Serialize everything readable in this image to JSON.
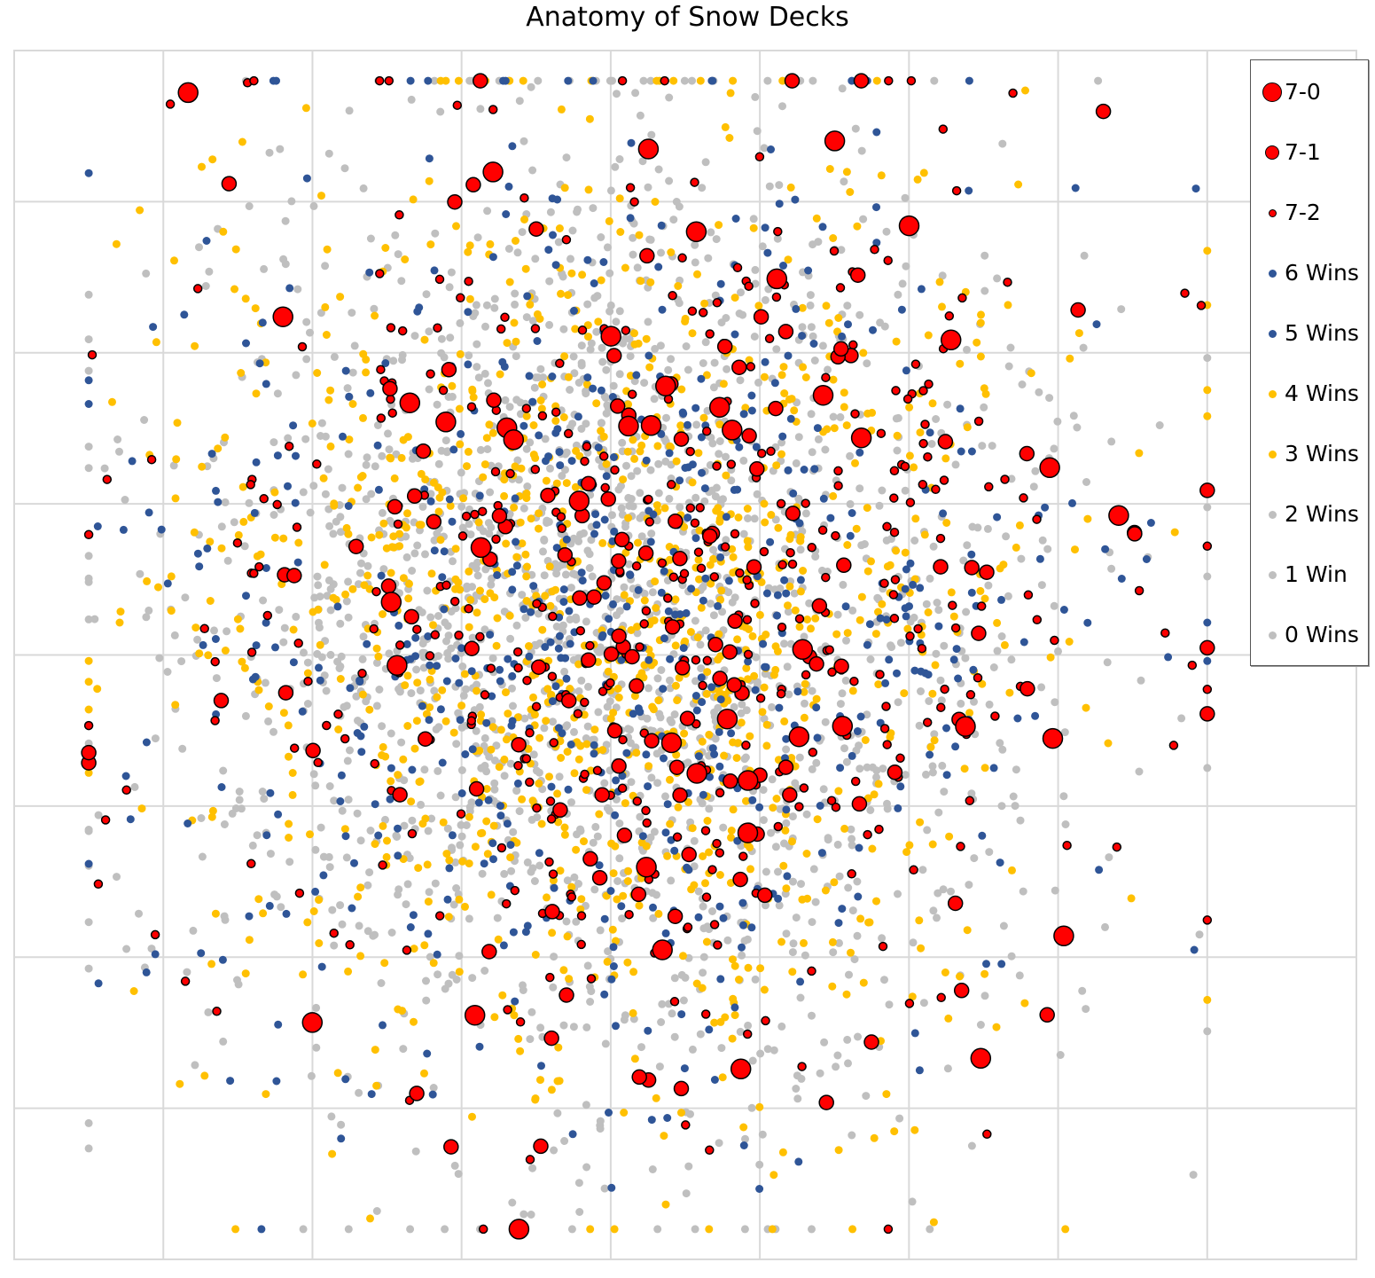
{
  "chart_data": {
    "type": "scatter",
    "title": "Anatomy of Snow Decks",
    "xlabel": "",
    "ylabel": "",
    "xlim": [
      0,
      9
    ],
    "ylim": [
      0,
      8
    ],
    "grid": true,
    "legend_placement": "top-right",
    "note": "Scatter of individual decks; thousands of points, approximate distribution reproduced procedurally.",
    "series": [
      {
        "name": "7-0",
        "color": "#FF0000",
        "outline": "#000000",
        "marker": "large",
        "approx_count": 45
      },
      {
        "name": "7-1",
        "color": "#FF0000",
        "outline": "#000000",
        "marker": "medium",
        "approx_count": 140
      },
      {
        "name": "7-2",
        "color": "#FF0000",
        "outline": "#000000",
        "marker": "small",
        "approx_count": 420
      },
      {
        "name": "6 Wins",
        "color": "#2F5597",
        "approx_count": 260
      },
      {
        "name": "5 Wins",
        "color": "#2F5597",
        "approx_count": 360
      },
      {
        "name": "4 Wins",
        "color": "#FFC000",
        "approx_count": 480
      },
      {
        "name": "3 Wins",
        "color": "#FFC000",
        "approx_count": 620
      },
      {
        "name": "2 Wins",
        "color": "#BFBFBF",
        "approx_count": 700
      },
      {
        "name": "1 Win",
        "color": "#BFBFBF",
        "approx_count": 700
      },
      {
        "name": "0 Wins",
        "color": "#BFBFBF",
        "approx_count": 500
      }
    ]
  }
}
